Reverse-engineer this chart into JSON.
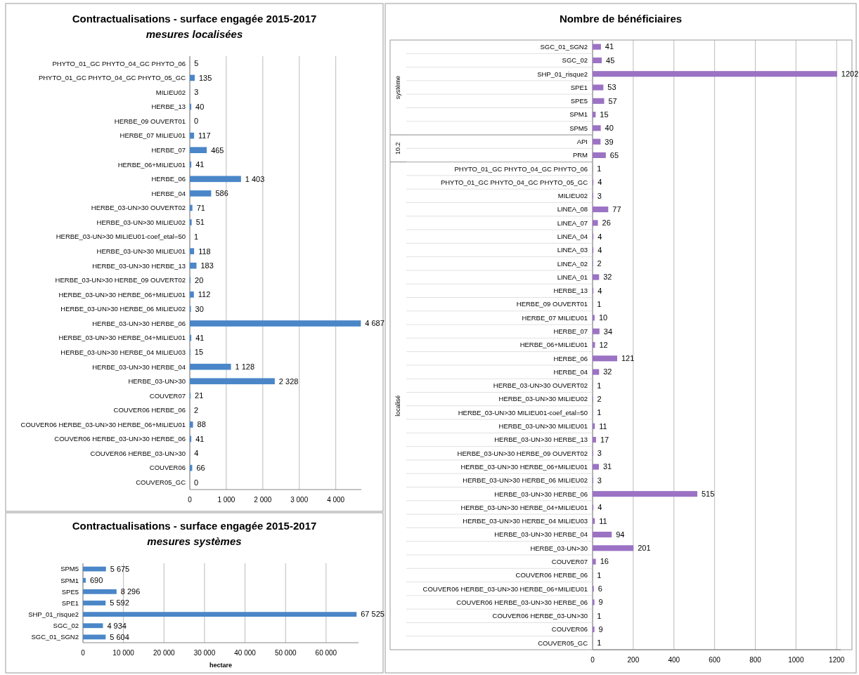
{
  "chart_data": [
    {
      "type": "bar",
      "orientation": "horizontal",
      "title": "Contractualisations - surface engagée 2015-2017",
      "subtitle": "mesures localisées",
      "color": "#4a86c8",
      "grid": "x",
      "categories": [
        "PHYTO_01_GC PHYTO_04_GC PHYTO_06",
        "PHYTO_01_GC PHYTO_04_GC PHYTO_05_GC",
        "MILIEU02",
        "HERBE_13",
        "HERBE_09 OUVERT01",
        "HERBE_07 MILIEU01",
        "HERBE_07",
        "HERBE_06+MILIEU01",
        "HERBE_06",
        "HERBE_04",
        "HERBE_03-UN>30 OUVERT02",
        "HERBE_03-UN>30 MILIEU02",
        "HERBE_03-UN>30 MILIEU01-coef_etal=50",
        "HERBE_03-UN>30 MILIEU01",
        "HERBE_03-UN>30 HERBE_13",
        "HERBE_03-UN>30 HERBE_09 OUVERT02",
        "HERBE_03-UN>30 HERBE_06+MILIEU01",
        "HERBE_03-UN>30 HERBE_06 MILIEU02",
        "HERBE_03-UN>30 HERBE_06",
        "HERBE_03-UN>30 HERBE_04+MILIEU01",
        "HERBE_03-UN>30 HERBE_04 MILIEU03",
        "HERBE_03-UN>30 HERBE_04",
        "HERBE_03-UN>30",
        "COUVER07",
        "COUVER06 HERBE_06",
        "COUVER06 HERBE_03-UN>30 HERBE_06+MILIEU01",
        "COUVER06 HERBE_03-UN>30 HERBE_06",
        "COUVER06 HERBE_03-UN>30",
        "COUVER06",
        "COUVER05_GC"
      ],
      "values": [
        5,
        135,
        3,
        40,
        0,
        117,
        465,
        41,
        1403,
        586,
        71,
        51,
        1,
        118,
        183,
        20,
        112,
        30,
        4687,
        41,
        15,
        1128,
        2328,
        21,
        2,
        88,
        41,
        4,
        66,
        0
      ],
      "value_labels": [
        "5",
        "135",
        "3",
        "40",
        "0",
        "117",
        "465",
        "41",
        "1 403",
        "586",
        "71",
        "51",
        "1",
        "118",
        "183",
        "20",
        "112",
        "30",
        "4 687",
        "41",
        "15",
        "1 128",
        "2 328",
        "21",
        "2",
        "88",
        "41",
        "4",
        "66",
        "0"
      ],
      "xlim": [
        0,
        4700
      ],
      "xticks": [
        0,
        {
          "value": 1000,
          "label": "1 000"
        },
        {
          "value": 2000,
          "label": "2 000"
        },
        {
          "value": 3000,
          "label": "3 000"
        },
        {
          "value": 4000,
          "label": "4 000"
        }
      ]
    },
    {
      "type": "bar",
      "orientation": "horizontal",
      "title": "Contractualisations - surface engagée 2015-2017",
      "subtitle": "mesures systèmes",
      "xlabel": "hectare",
      "color": "#4a86c8",
      "grid": "x",
      "categories": [
        "SPM5",
        "SPM1",
        "SPE5",
        "SPE1",
        "SHP_01_risque2",
        "SGC_02",
        "SGC_01_SGN2"
      ],
      "values": [
        5675,
        690,
        8296,
        5592,
        67525,
        4934,
        5604
      ],
      "value_labels": [
        "5 675",
        "690",
        "8 296",
        "5 592",
        "67 525",
        "4 934",
        "5 604"
      ],
      "xlim": [
        0,
        68000
      ],
      "xticks": [
        0,
        {
          "value": 10000,
          "label": "10 000"
        },
        {
          "value": 20000,
          "label": "20 000"
        },
        {
          "value": 30000,
          "label": "30 000"
        },
        {
          "value": 40000,
          "label": "40 000"
        },
        {
          "value": 50000,
          "label": "50 000"
        },
        {
          "value": 60000,
          "label": "60 000"
        }
      ]
    },
    {
      "type": "bar",
      "orientation": "horizontal",
      "title": "Nombre de bénéficiaires",
      "color": "#9b72c4",
      "grid": "x",
      "data_labels": true,
      "categories": [
        "SGC_01_SGN2",
        "SGC_02",
        "SHP_01_risque2",
        "SPE1",
        "SPE5",
        "SPM1",
        "SPM5",
        "API",
        "PRM",
        "PHYTO_01_GC PHYTO_04_GC PHYTO_06",
        "PHYTO_01_GC PHYTO_04_GC PHYTO_05_GC",
        "MILIEU02",
        "LINEA_08",
        "LINEA_07",
        "LINEA_04",
        "LINEA_03",
        "LINEA_02",
        "LINEA_01",
        "HERBE_13",
        "HERBE_09 OUVERT01",
        "HERBE_07 MILIEU01",
        "HERBE_07",
        "HERBE_06+MILIEU01",
        "HERBE_06",
        "HERBE_04",
        "HERBE_03-UN>30 OUVERT02",
        "HERBE_03-UN>30 MILIEU02",
        "HERBE_03-UN>30 MILIEU01-coef_etal=50",
        "HERBE_03-UN>30 MILIEU01",
        "HERBE_03-UN>30 HERBE_13",
        "HERBE_03-UN>30 HERBE_09 OUVERT02",
        "HERBE_03-UN>30 HERBE_06+MILIEU01",
        "HERBE_03-UN>30 HERBE_06 MILIEU02",
        "HERBE_03-UN>30 HERBE_06",
        "HERBE_03-UN>30 HERBE_04+MILIEU01",
        "HERBE_03-UN>30 HERBE_04 MILIEU03",
        "HERBE_03-UN>30 HERBE_04",
        "HERBE_03-UN>30",
        "COUVER07",
        "COUVER06 HERBE_06",
        "COUVER06 HERBE_03-UN>30 HERBE_06+MILIEU01",
        "COUVER06 HERBE_03-UN>30 HERBE_06",
        "COUVER06 HERBE_03-UN>30",
        "COUVER06",
        "COUVER05_GC"
      ],
      "values": [
        41,
        45,
        1202,
        53,
        57,
        15,
        40,
        39,
        65,
        1,
        4,
        3,
        77,
        26,
        4,
        4,
        2,
        32,
        4,
        1,
        10,
        34,
        12,
        121,
        32,
        1,
        2,
        1,
        11,
        17,
        3,
        31,
        3,
        515,
        4,
        11,
        94,
        201,
        16,
        1,
        6,
        9,
        1,
        9,
        1
      ],
      "xlim": [
        0,
        1220
      ],
      "xticks": [
        0,
        200,
        400,
        600,
        800,
        1000,
        1200
      ],
      "annotations": [
        "système",
        "10.2",
        "localisé"
      ]
    }
  ]
}
